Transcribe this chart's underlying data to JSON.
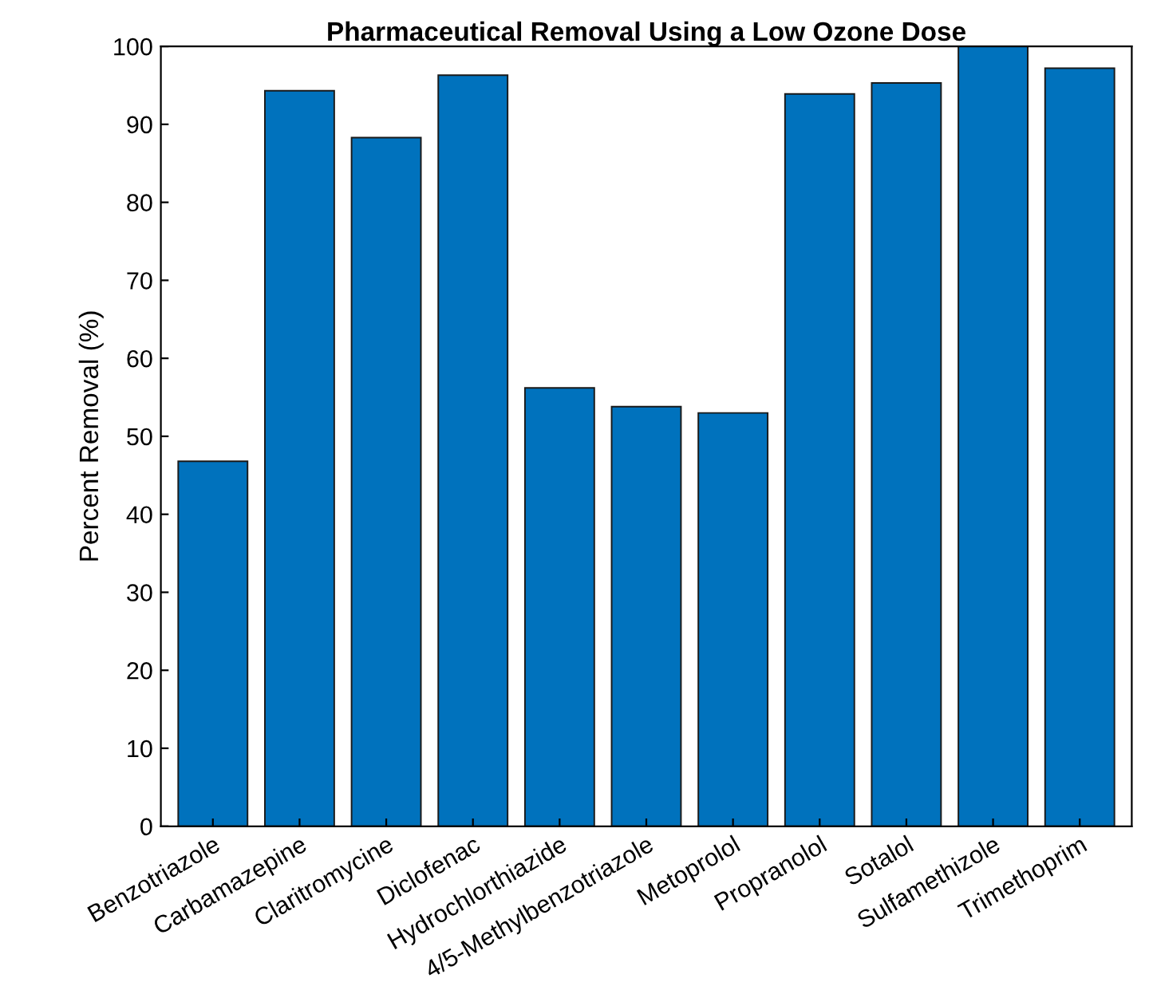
{
  "chart_data": {
    "type": "bar",
    "title": "Pharmaceutical Removal Using a Low Ozone Dose",
    "ylabel": "Percent Removal (%)",
    "categories": [
      "Benzotriazole",
      "Carbamazepine",
      "Claritromycine",
      "Diclofenac",
      "Hydrochlorthiazide",
      "4/5-Methylbenzotriazole",
      "Metoprolol",
      "Propranolol",
      "Sotalol",
      "Sulfamethizole",
      "Trimethoprim"
    ],
    "values": [
      46.8,
      94.3,
      88.3,
      96.3,
      56.2,
      53.8,
      53.0,
      93.9,
      95.3,
      100,
      97.2
    ],
    "color": "#0072bd",
    "ylim": [
      0,
      100
    ],
    "yticks": [
      0,
      10,
      20,
      30,
      40,
      50,
      60,
      70,
      80,
      90,
      100
    ],
    "grid": false
  }
}
